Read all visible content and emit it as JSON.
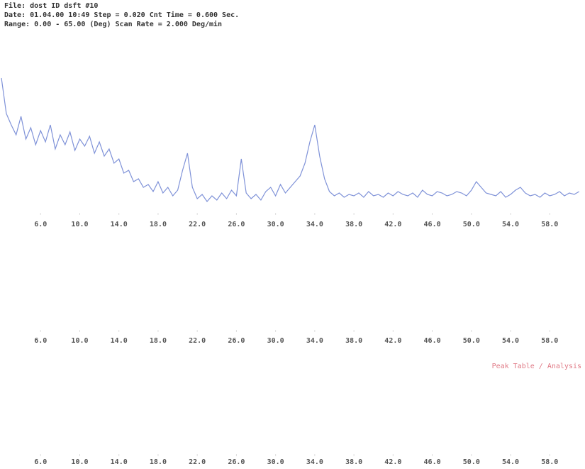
{
  "header": {
    "lines": [
      "File: dost  ID  dsft  #10",
      "Date: 01.04.00 10:49  Step = 0.020  Cnt Time = 0.600 Sec.",
      "Range: 0.00 - 65.00 (Deg)  Scan Rate = 2.000 Deg/min"
    ]
  },
  "note": "Peak Table / Analysis",
  "chart_data": [
    {
      "type": "line",
      "color": "#7f92d8",
      "x": [
        2,
        2.5,
        3,
        3.5,
        4,
        4.5,
        5,
        5.5,
        6,
        6.5,
        7,
        7.5,
        8,
        8.5,
        9,
        9.5,
        10,
        10.5,
        11,
        11.5,
        12,
        12.5,
        13,
        13.5,
        14,
        14.5,
        15,
        15.5,
        16,
        16.5,
        17,
        17.5,
        18,
        18.5,
        19,
        19.5,
        20,
        20.5,
        21,
        21.5,
        22,
        22.5,
        23,
        23.5,
        24,
        24.5,
        25,
        25.5,
        26,
        26.5,
        27,
        27.5,
        28,
        28.5,
        29,
        29.5,
        30,
        30.5,
        31,
        31.5,
        32,
        32.5,
        33,
        33.5,
        34,
        34.5,
        35,
        35.5,
        36,
        36.5,
        37,
        37.5,
        38,
        38.5,
        39,
        39.5,
        40,
        40.5,
        41,
        41.5,
        42,
        42.5,
        43,
        43.5,
        44,
        44.5,
        45,
        45.5,
        46,
        46.5,
        47,
        47.5,
        48,
        48.5,
        49,
        49.5,
        50,
        50.5,
        51,
        51.5,
        52,
        52.5,
        53,
        53.5,
        54,
        54.5,
        55,
        55.5,
        56,
        56.5,
        57,
        57.5,
        58,
        58.5,
        59,
        59.5,
        60,
        60.5,
        61
      ],
      "values": [
        95,
        70,
        62,
        55,
        68,
        52,
        60,
        48,
        58,
        50,
        62,
        45,
        55,
        48,
        57,
        44,
        52,
        47,
        54,
        42,
        50,
        40,
        45,
        35,
        38,
        28,
        30,
        22,
        24,
        18,
        20,
        15,
        22,
        14,
        18,
        12,
        16,
        30,
        42,
        18,
        10,
        13,
        8,
        12,
        9,
        14,
        10,
        16,
        12,
        38,
        14,
        10,
        13,
        9,
        15,
        18,
        12,
        20,
        14,
        18,
        22,
        26,
        35,
        50,
        62,
        40,
        24,
        15,
        12,
        14,
        11,
        13,
        12,
        14,
        11,
        15,
        12,
        13,
        11,
        14,
        12,
        15,
        13,
        12,
        14,
        11,
        16,
        13,
        12,
        15,
        14,
        12,
        13,
        15,
        14,
        12,
        16,
        22,
        18,
        14,
        13,
        12,
        15,
        11,
        13,
        16,
        18,
        14,
        12,
        13,
        11,
        14,
        12,
        13,
        15,
        12,
        14,
        13,
        15
      ],
      "xlim": [
        2,
        61.6
      ],
      "ylim": [
        0,
        100
      ],
      "xticks": [
        {
          "value": 6,
          "label": "6.0"
        },
        {
          "value": 10,
          "label": "10.0"
        },
        {
          "value": 14,
          "label": "14.0"
        },
        {
          "value": 18,
          "label": "18.0"
        },
        {
          "value": 22,
          "label": "22.0"
        },
        {
          "value": 26,
          "label": "26.0"
        },
        {
          "value": 30,
          "label": "30.0"
        },
        {
          "value": 34,
          "label": "34.0"
        },
        {
          "value": 38,
          "label": "38.0"
        },
        {
          "value": 42,
          "label": "42.0"
        },
        {
          "value": 46,
          "label": "46.0"
        },
        {
          "value": 50,
          "label": "50.0"
        },
        {
          "value": 54,
          "label": "54.0"
        },
        {
          "value": 58,
          "label": "58.0"
        }
      ]
    },
    {
      "type": "axis",
      "xlim": [
        2,
        61.6
      ],
      "xticks": [
        {
          "value": 6,
          "label": "6.0"
        },
        {
          "value": 10,
          "label": "10.0"
        },
        {
          "value": 14,
          "label": "14.0"
        },
        {
          "value": 18,
          "label": "18.0"
        },
        {
          "value": 22,
          "label": "22.0"
        },
        {
          "value": 26,
          "label": "26.0"
        },
        {
          "value": 30,
          "label": "30.0"
        },
        {
          "value": 34,
          "label": "34.0"
        },
        {
          "value": 38,
          "label": "38.0"
        },
        {
          "value": 42,
          "label": "42.0"
        },
        {
          "value": 46,
          "label": "46.0"
        },
        {
          "value": 50,
          "label": "50.0"
        },
        {
          "value": 54,
          "label": "54.0"
        },
        {
          "value": 58,
          "label": "58.0"
        }
      ]
    },
    {
      "type": "axis",
      "xlim": [
        2,
        61.6
      ],
      "xticks": [
        {
          "value": 6,
          "label": "6.0"
        },
        {
          "value": 10,
          "label": "10.0"
        },
        {
          "value": 14,
          "label": "14.0"
        },
        {
          "value": 18,
          "label": "18.0"
        },
        {
          "value": 22,
          "label": "22.0"
        },
        {
          "value": 26,
          "label": "26.0"
        },
        {
          "value": 30,
          "label": "30.0"
        },
        {
          "value": 34,
          "label": "34.0"
        },
        {
          "value": 38,
          "label": "38.0"
        },
        {
          "value": 42,
          "label": "42.0"
        },
        {
          "value": 46,
          "label": "46.0"
        },
        {
          "value": 50,
          "label": "50.0"
        },
        {
          "value": 54,
          "label": "54.0"
        },
        {
          "value": 58,
          "label": "58.0"
        }
      ]
    }
  ]
}
